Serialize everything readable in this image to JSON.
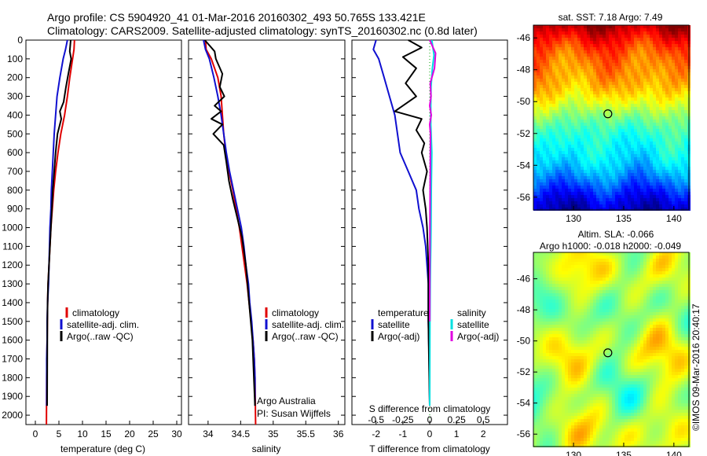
{
  "header": {
    "line1": "Argo profile: CS 5904920_41 01-Mar-2016 20160302_493 50.765S 133.421E",
    "line2": "Climatology: CARS2009. Satellite-adjusted climatology: synTS_20160302.nc (0.8d later)"
  },
  "colors": {
    "climatology": "#e00000",
    "satellite": "#1010d0",
    "argo": "#000000",
    "satellite_salinity": "#00e0e0",
    "argo_salinity": "#e000e0"
  },
  "depth_ticks": [
    0,
    100,
    200,
    300,
    400,
    500,
    600,
    700,
    800,
    900,
    1000,
    1100,
    1200,
    1300,
    1400,
    1500,
    1600,
    1700,
    1800,
    1900,
    2000
  ],
  "chart_data": [
    {
      "type": "line",
      "xlabel": "temperature (deg C)",
      "xlim": [
        -2,
        31
      ],
      "ylim": [
        2050,
        0
      ],
      "xticks": [
        0,
        5,
        10,
        15,
        20,
        25,
        30
      ],
      "legend": [
        "climatology",
        "satellite-adj. clim.",
        "Argo(..raw -QC)"
      ],
      "series": [
        {
          "name": "climatology",
          "color": "#e00000",
          "x": [
            8.3,
            8.2,
            7.9,
            7.3,
            6.8,
            6.2,
            5.4,
            4.8,
            4.3,
            3.9,
            3.6,
            3.3,
            3.1,
            2.9,
            2.7,
            2.6,
            2.55,
            2.5,
            2.45,
            2.4,
            2.35
          ],
          "y": [
            0,
            50,
            100,
            200,
            300,
            400,
            500,
            600,
            700,
            800,
            900,
            1000,
            1100,
            1200,
            1300,
            1400,
            1500,
            1600,
            1700,
            1800,
            2050
          ]
        },
        {
          "name": "satellite-adj. clim.",
          "color": "#1010d0",
          "x": [
            6.8,
            6.4,
            5.9,
            5.2,
            4.6,
            4.3,
            4.0,
            3.8,
            3.6,
            3.4,
            3.3,
            3.1,
            3.0,
            2.9,
            2.8,
            2.6,
            2.5,
            2.5,
            2.4,
            2.4,
            2.4
          ],
          "y": [
            0,
            50,
            100,
            200,
            300,
            400,
            500,
            600,
            700,
            800,
            900,
            1000,
            1100,
            1200,
            1300,
            1400,
            1500,
            1600,
            1700,
            1800,
            1950
          ]
        },
        {
          "name": "Argo(..raw -QC)",
          "color": "#000000",
          "x": [
            7.5,
            7.3,
            7.6,
            7.0,
            6.5,
            6.0,
            5.2,
            5.5,
            4.7,
            4.3,
            4.0,
            3.7,
            3.5,
            3.3,
            3.1,
            2.9,
            2.7,
            2.6,
            2.55,
            2.5
          ],
          "y": [
            0,
            60,
            100,
            180,
            250,
            330,
            380,
            420,
            500,
            600,
            700,
            800,
            900,
            1000,
            1100,
            1200,
            1300,
            1400,
            1500,
            1950
          ]
        }
      ]
    },
    {
      "type": "line",
      "xlabel": "salinity",
      "xlim": [
        33.7,
        36.1
      ],
      "ylim": [
        2050,
        0
      ],
      "xticks": [
        34,
        34.5,
        35,
        35.5,
        36
      ],
      "legend": [
        "climatology",
        "satellite-adj. clim.",
        "Argo(..raw -QC)"
      ],
      "annotation": [
        "Argo Australia",
        "PI: Susan Wijffels"
      ],
      "series": [
        {
          "name": "climatology",
          "color": "#e00000",
          "x": [
            33.96,
            33.97,
            34.05,
            34.15,
            34.2,
            34.22,
            34.24,
            34.27,
            34.32,
            34.38,
            34.43,
            34.48,
            34.52,
            34.56,
            34.6,
            34.63,
            34.66,
            34.69,
            34.71,
            34.72,
            34.73
          ],
          "y": [
            0,
            50,
            100,
            200,
            300,
            400,
            500,
            600,
            700,
            800,
            900,
            1000,
            1100,
            1200,
            1300,
            1400,
            1500,
            1600,
            1700,
            1800,
            2050
          ]
        },
        {
          "name": "satellite-adj. clim.",
          "color": "#1010d0",
          "x": [
            33.93,
            33.96,
            34.02,
            34.09,
            34.15,
            34.2,
            34.24,
            34.28,
            34.33,
            34.39,
            34.45,
            34.51,
            34.55,
            34.58,
            34.62,
            34.64,
            34.67,
            34.69,
            34.71,
            34.72,
            34.72
          ],
          "y": [
            0,
            50,
            100,
            200,
            300,
            400,
            500,
            600,
            700,
            800,
            900,
            1000,
            1100,
            1200,
            1300,
            1400,
            1500,
            1600,
            1700,
            1800,
            1950
          ]
        },
        {
          "name": "Argo(..raw -QC)",
          "color": "#000000",
          "x": [
            33.95,
            34.1,
            34.12,
            34.22,
            34.18,
            34.25,
            34.1,
            34.2,
            34.05,
            34.22,
            34.08,
            34.24,
            34.28,
            34.32,
            34.38,
            34.45,
            34.52,
            34.58,
            34.63,
            34.68,
            34.72
          ],
          "y": [
            0,
            60,
            100,
            180,
            250,
            300,
            350,
            380,
            420,
            450,
            500,
            560,
            650,
            750,
            850,
            950,
            1050,
            1200,
            1400,
            1600,
            1950
          ]
        }
      ]
    },
    {
      "type": "line",
      "xlabel": "T difference from climatology",
      "xlabel2": "S difference from climatology",
      "xlim": [
        -2.9,
        2.9
      ],
      "ylim": [
        2050,
        0
      ],
      "xticks": [
        -2,
        -1,
        0,
        1,
        2
      ],
      "xticks2": [
        "-0.5",
        "-0.25",
        "0",
        "0.25",
        "0.5"
      ],
      "legend_temperature": [
        "temperature",
        "satellite",
        "Argo(-adj)"
      ],
      "legend_salinity": [
        "salinity",
        "satellite",
        "Argo(-adj)"
      ],
      "series": [
        {
          "name": "temperature satellite",
          "color": "#1010d0",
          "x": [
            -2.0,
            -2.1,
            -1.9,
            -1.7,
            -1.5,
            -1.3,
            -1.2,
            -1.1,
            -0.8,
            -0.5,
            -0.4,
            -0.25,
            -0.15,
            -0.1,
            -0.05,
            -0.05,
            -0.05,
            -0.02,
            0.0
          ],
          "y": [
            0,
            50,
            100,
            200,
            300,
            400,
            500,
            600,
            700,
            800,
            900,
            1000,
            1100,
            1200,
            1300,
            1400,
            1500,
            1700,
            1950
          ]
        },
        {
          "name": "temperature Argo(-adj)",
          "color": "#000000",
          "x": [
            -0.8,
            -0.3,
            -1.0,
            -0.5,
            -0.9,
            -0.5,
            -1.3,
            -0.3,
            -0.5,
            -0.2,
            -0.3,
            -0.1,
            -0.25,
            -0.15,
            -0.1,
            -0.05,
            -0.05,
            0.0
          ],
          "y": [
            0,
            40,
            90,
            150,
            230,
            300,
            380,
            420,
            480,
            550,
            600,
            700,
            800,
            900,
            1000,
            1200,
            1500,
            1950
          ]
        },
        {
          "name": "salinity satellite",
          "color": "#00e0e0",
          "x": [
            0.08,
            0.16,
            0.1,
            0.05,
            0.04,
            0.04,
            0.08,
            0.06,
            0.05,
            0.04,
            0.03,
            0.02,
            0.01,
            0.0
          ],
          "y": [
            0,
            80,
            150,
            250,
            350,
            450,
            600,
            800,
            1000,
            1100,
            1200,
            1300,
            1500,
            1950
          ]
        },
        {
          "name": "salinity Argo(-adj)",
          "color": "#e000e0",
          "x": [
            0.0,
            0.22,
            0.18,
            0.02,
            0.05,
            0.0,
            0.06,
            0.0,
            0.03,
            0.02,
            0.01,
            0.0
          ],
          "y": [
            0,
            70,
            150,
            230,
            300,
            350,
            400,
            450,
            500,
            700,
            1000,
            1500
          ]
        }
      ]
    },
    {
      "type": "heatmap",
      "title": "sat. SST: 7.18 Argo: 7.49",
      "xlim": [
        126,
        141.5
      ],
      "ylim": [
        -56.8,
        -45.2
      ],
      "xticks": [
        130,
        135,
        140
      ],
      "yticks": [
        -46,
        -48,
        -50,
        -52,
        -54,
        -56
      ],
      "marker": {
        "lon": 133.421,
        "lat": -50.765
      }
    },
    {
      "type": "heatmap",
      "title": "Altim. SLA: -0.066",
      "title2": "Argo h1000: -0.018 h2000: -0.049",
      "xlim": [
        126,
        141.5
      ],
      "ylim": [
        -56.8,
        -44.3
      ],
      "xticks": [
        130,
        135,
        140
      ],
      "yticks": [
        -46,
        -48,
        -50,
        -52,
        -54,
        -56
      ],
      "marker": {
        "lon": 133.421,
        "lat": -50.765
      }
    }
  ],
  "credit": "©IMOS 09-Mar-2016 20:40:17"
}
